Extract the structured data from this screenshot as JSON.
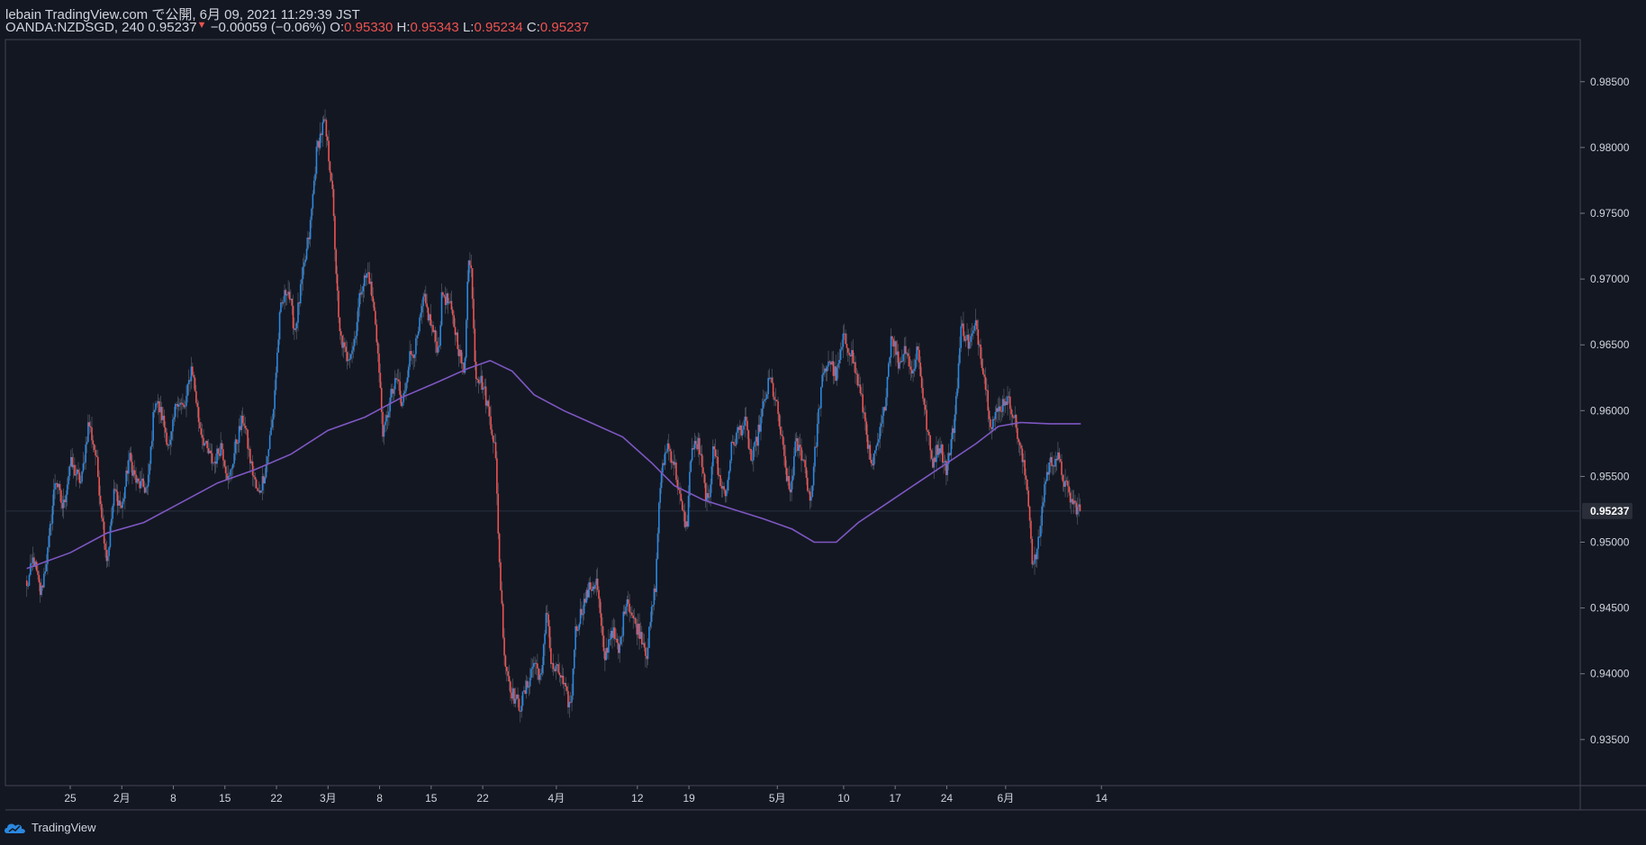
{
  "header": {
    "line1": "lebain TradingView.com で公開, 6月 09, 2021 11:29:39 JST",
    "symbol": "OANDA:NZDSGD, 240",
    "last": "0.95237",
    "change_arrow": "▼",
    "change": "−0.00059 (−0.06%)",
    "o_label": "O:",
    "o_value": "0.95330",
    "h_label": "H:",
    "h_value": "0.95343",
    "l_label": "L:",
    "l_value": "0.95234",
    "c_label": "C:",
    "c_value": "0.95237"
  },
  "footer": {
    "brand": "TradingView",
    "logo_icon": "tradingview-cloud-icon"
  },
  "colors": {
    "background": "#131722",
    "up": "#2a88e0",
    "down": "#ef5350",
    "ma": "#7e57c2",
    "text": "#d1d4dc",
    "axis": "#434651"
  },
  "chart_data": {
    "type": "candlestick",
    "symbol": "OANDA:NZDSGD",
    "timeframe": "240",
    "ylim": [
      0.9315,
      0.9882
    ],
    "y_ticks": [
      "0.93500",
      "0.94000",
      "0.94500",
      "0.95000",
      "0.95500",
      "0.96000",
      "0.96500",
      "0.97000",
      "0.97500",
      "0.98000",
      "0.98500"
    ],
    "y_tick_values": [
      0.935,
      0.94,
      0.945,
      0.95,
      0.955,
      0.96,
      0.965,
      0.97,
      0.975,
      0.98,
      0.985
    ],
    "x_ticks": [
      {
        "label": "25",
        "day": 25
      },
      {
        "label": "2月",
        "day": 32
      },
      {
        "label": "8",
        "day": 39
      },
      {
        "label": "15",
        "day": 46
      },
      {
        "label": "22",
        "day": 53
      },
      {
        "label": "3月",
        "day": 60
      },
      {
        "label": "8",
        "day": 67
      },
      {
        "label": "15",
        "day": 74
      },
      {
        "label": "22",
        "day": 81
      },
      {
        "label": "4月",
        "day": 91
      },
      {
        "label": "12",
        "day": 102
      },
      {
        "label": "19",
        "day": 109
      },
      {
        "label": "5月",
        "day": 121
      },
      {
        "label": "10",
        "day": 130
      },
      {
        "label": "17",
        "day": 137
      },
      {
        "label": "24",
        "day": 144
      },
      {
        "label": "6月",
        "day": 152
      },
      {
        "label": "14",
        "day": 165
      }
    ],
    "x_range_days": [
      19.1,
      162.6
    ],
    "last_price": 0.95237,
    "last_price_label": "0.95237",
    "price_path": [
      [
        19.1,
        0.9465
      ],
      [
        20.0,
        0.9488
      ],
      [
        21.0,
        0.946
      ],
      [
        22.0,
        0.9495
      ],
      [
        23.0,
        0.955
      ],
      [
        24.0,
        0.9525
      ],
      [
        25.0,
        0.956
      ],
      [
        26.5,
        0.9545
      ],
      [
        27.5,
        0.9592
      ],
      [
        28.5,
        0.9565
      ],
      [
        29.5,
        0.951
      ],
      [
        30.0,
        0.9485
      ],
      [
        31.0,
        0.954
      ],
      [
        32.0,
        0.9525
      ],
      [
        33.0,
        0.9565
      ],
      [
        34.0,
        0.9545
      ],
      [
        35.5,
        0.954
      ],
      [
        36.5,
        0.961
      ],
      [
        37.5,
        0.9595
      ],
      [
        38.5,
        0.957
      ],
      [
        39.5,
        0.961
      ],
      [
        40.5,
        0.96
      ],
      [
        41.5,
        0.9635
      ],
      [
        42.5,
        0.959
      ],
      [
        43.5,
        0.957
      ],
      [
        44.5,
        0.956
      ],
      [
        45.5,
        0.9575
      ],
      [
        46.5,
        0.9545
      ],
      [
        47.5,
        0.9575
      ],
      [
        48.5,
        0.9595
      ],
      [
        49.5,
        0.956
      ],
      [
        50.5,
        0.9535
      ],
      [
        51.5,
        0.9555
      ],
      [
        52.5,
        0.9595
      ],
      [
        53.5,
        0.9675
      ],
      [
        54.5,
        0.9695
      ],
      [
        55.5,
        0.966
      ],
      [
        56.5,
        0.97
      ],
      [
        57.5,
        0.9735
      ],
      [
        58.5,
        0.98
      ],
      [
        59.5,
        0.982
      ],
      [
        60.5,
        0.9775
      ],
      [
        61.5,
        0.966
      ],
      [
        62.5,
        0.964
      ],
      [
        63.5,
        0.965
      ],
      [
        64.5,
        0.9695
      ],
      [
        65.5,
        0.9705
      ],
      [
        66.5,
        0.9665
      ],
      [
        67.5,
        0.958
      ],
      [
        68.5,
        0.961
      ],
      [
        69.5,
        0.9625
      ],
      [
        70.0,
        0.96
      ],
      [
        71.0,
        0.964
      ],
      [
        72.0,
        0.965
      ],
      [
        73.0,
        0.9685
      ],
      [
        74.0,
        0.9665
      ],
      [
        75.0,
        0.9645
      ],
      [
        75.5,
        0.969
      ],
      [
        76.5,
        0.968
      ],
      [
        77.5,
        0.9655
      ],
      [
        78.5,
        0.9625
      ],
      [
        79.0,
        0.9715
      ],
      [
        79.5,
        0.9705
      ],
      [
        80.0,
        0.963
      ],
      [
        81.0,
        0.962
      ],
      [
        82.0,
        0.9595
      ],
      [
        82.7,
        0.957
      ],
      [
        83.3,
        0.948
      ],
      [
        84.0,
        0.941
      ],
      [
        85.0,
        0.9385
      ],
      [
        86.0,
        0.9375
      ],
      [
        87.0,
        0.939
      ],
      [
        88.0,
        0.941
      ],
      [
        89.0,
        0.9395
      ],
      [
        89.7,
        0.9455
      ],
      [
        90.3,
        0.9405
      ],
      [
        91.5,
        0.94
      ],
      [
        92.5,
        0.938
      ],
      [
        93.0,
        0.9375
      ],
      [
        93.5,
        0.943
      ],
      [
        94.5,
        0.945
      ],
      [
        95.5,
        0.9465
      ],
      [
        96.5,
        0.947
      ],
      [
        97.5,
        0.941
      ],
      [
        98.5,
        0.9435
      ],
      [
        99.5,
        0.9415
      ],
      [
        100.5,
        0.946
      ],
      [
        101.5,
        0.944
      ],
      [
        102.5,
        0.943
      ],
      [
        103.3,
        0.9415
      ],
      [
        103.9,
        0.9445
      ],
      [
        104.5,
        0.947
      ],
      [
        105.0,
        0.954
      ],
      [
        106.0,
        0.9575
      ],
      [
        107.0,
        0.956
      ],
      [
        108.0,
        0.9525
      ],
      [
        108.7,
        0.951
      ],
      [
        109.3,
        0.957
      ],
      [
        110.3,
        0.9575
      ],
      [
        111.0,
        0.9545
      ],
      [
        111.7,
        0.9525
      ],
      [
        112.3,
        0.958
      ],
      [
        113.0,
        0.955
      ],
      [
        114.0,
        0.9535
      ],
      [
        114.7,
        0.957
      ],
      [
        115.7,
        0.9585
      ],
      [
        116.7,
        0.959
      ],
      [
        117.5,
        0.956
      ],
      [
        118.3,
        0.958
      ],
      [
        119.0,
        0.96
      ],
      [
        120.0,
        0.9625
      ],
      [
        121.0,
        0.96
      ],
      [
        122.0,
        0.956
      ],
      [
        122.7,
        0.9535
      ],
      [
        123.5,
        0.9575
      ],
      [
        124.5,
        0.9565
      ],
      [
        125.5,
        0.953
      ],
      [
        126.3,
        0.958
      ],
      [
        127.0,
        0.962
      ],
      [
        128.0,
        0.964
      ],
      [
        129.0,
        0.9625
      ],
      [
        130.0,
        0.9655
      ],
      [
        131.0,
        0.9645
      ],
      [
        132.0,
        0.962
      ],
      [
        133.0,
        0.959
      ],
      [
        133.7,
        0.9555
      ],
      [
        134.5,
        0.957
      ],
      [
        135.5,
        0.96
      ],
      [
        136.5,
        0.966
      ],
      [
        137.5,
        0.9635
      ],
      [
        138.5,
        0.965
      ],
      [
        139.3,
        0.9625
      ],
      [
        140.0,
        0.965
      ],
      [
        141.0,
        0.96
      ],
      [
        142.0,
        0.956
      ],
      [
        143.0,
        0.9575
      ],
      [
        144.0,
        0.9555
      ],
      [
        145.0,
        0.959
      ],
      [
        146.0,
        0.9665
      ],
      [
        147.0,
        0.965
      ],
      [
        148.0,
        0.9665
      ],
      [
        149.0,
        0.963
      ],
      [
        150.0,
        0.959
      ],
      [
        151.0,
        0.96
      ],
      [
        152.0,
        0.961
      ],
      [
        153.0,
        0.96
      ],
      [
        154.0,
        0.957
      ],
      [
        155.0,
        0.954
      ],
      [
        155.7,
        0.948
      ],
      [
        156.5,
        0.95
      ],
      [
        157.3,
        0.9545
      ],
      [
        158.0,
        0.956
      ],
      [
        159.0,
        0.9565
      ],
      [
        160.0,
        0.9545
      ],
      [
        161.0,
        0.953
      ],
      [
        162.2,
        0.95237
      ]
    ],
    "moving_average": [
      [
        19.1,
        0.948
      ],
      [
        25.0,
        0.9492
      ],
      [
        30.0,
        0.9507
      ],
      [
        35.0,
        0.9515
      ],
      [
        40.0,
        0.953
      ],
      [
        45.0,
        0.9545
      ],
      [
        50.0,
        0.9555
      ],
      [
        55.0,
        0.9567
      ],
      [
        60.0,
        0.9585
      ],
      [
        65.0,
        0.9595
      ],
      [
        70.0,
        0.961
      ],
      [
        75.0,
        0.9622
      ],
      [
        79.0,
        0.9632
      ],
      [
        82.0,
        0.9638
      ],
      [
        85.0,
        0.963
      ],
      [
        88.0,
        0.9612
      ],
      [
        92.0,
        0.96
      ],
      [
        96.0,
        0.959
      ],
      [
        100.0,
        0.958
      ],
      [
        104.0,
        0.956
      ],
      [
        107.0,
        0.9543
      ],
      [
        111.0,
        0.9532
      ],
      [
        115.0,
        0.9525
      ],
      [
        119.0,
        0.9518
      ],
      [
        123.0,
        0.951
      ],
      [
        126.0,
        0.95
      ],
      [
        129.0,
        0.95
      ],
      [
        132.0,
        0.9515
      ],
      [
        136.0,
        0.953
      ],
      [
        140.0,
        0.9545
      ],
      [
        144.0,
        0.956
      ],
      [
        148.0,
        0.9575
      ],
      [
        151.0,
        0.9588
      ],
      [
        154.0,
        0.9591
      ],
      [
        158.0,
        0.959
      ],
      [
        162.2,
        0.959
      ]
    ]
  }
}
